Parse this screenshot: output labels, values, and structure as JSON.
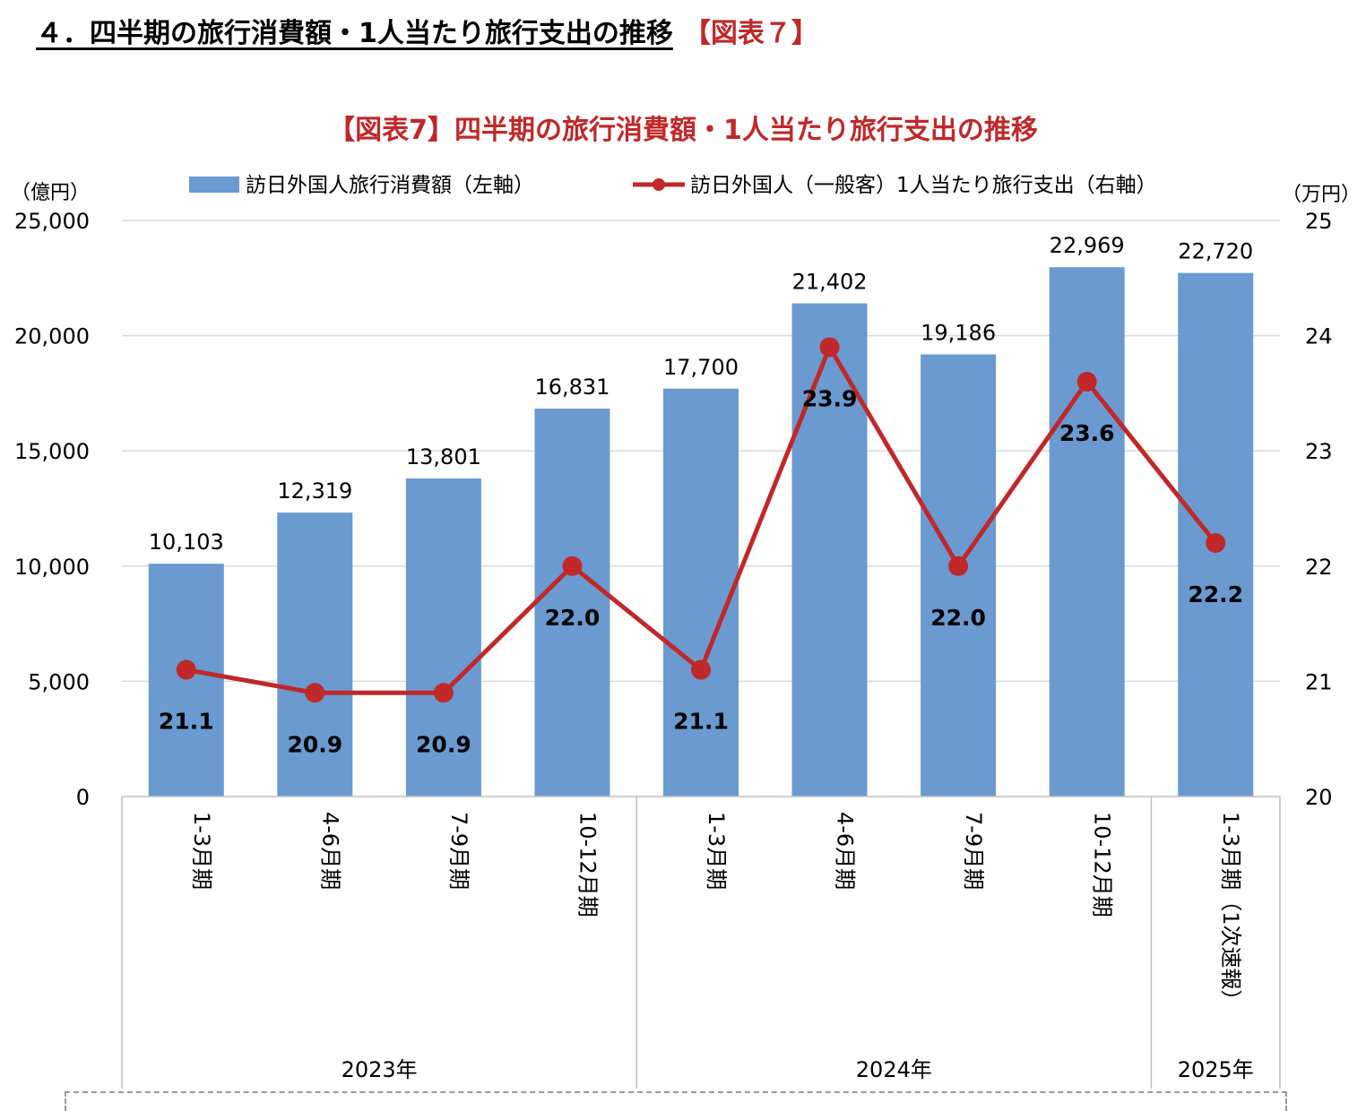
{
  "heading": {
    "main": "４．四半期の旅行消費額・1人当たり旅行支出の推移",
    "tag": "【図表７】"
  },
  "colors": {
    "bar": "#6a9ad0",
    "line": "#c0282a",
    "title": "#c0282a"
  },
  "chart_data": {
    "type": "bar+line",
    "title": "【図表7】四半期の旅行消費額・1人当たり旅行支出の推移",
    "legend_position": "top",
    "categories": [
      "1-3月期",
      "4-6月期",
      "7-9月期",
      "10-12月期",
      "1-3月期",
      "4-6月期",
      "7-9月期",
      "10-12月期",
      "1-3月期（1次速報）"
    ],
    "groups": [
      {
        "label": "2023年",
        "count": 4
      },
      {
        "label": "2024年",
        "count": 4
      },
      {
        "label": "2025年",
        "count": 1
      }
    ],
    "series": [
      {
        "name": "訪日外国人旅行消費額（左軸）",
        "type": "bar",
        "axis": "left",
        "values": [
          10103,
          12319,
          13801,
          16831,
          17700,
          21402,
          19186,
          22969,
          22720
        ],
        "labels": [
          "10,103",
          "12,319",
          "13,801",
          "16,831",
          "17,700",
          "21,402",
          "19,186",
          "22,969",
          "22,720"
        ]
      },
      {
        "name": "訪日外国人（一般客）1人当たり旅行支出（右軸）",
        "type": "line",
        "axis": "right",
        "values": [
          21.1,
          20.9,
          20.9,
          22.0,
          21.1,
          23.9,
          22.0,
          23.6,
          22.2
        ],
        "labels": [
          "21.1",
          "20.9",
          "20.9",
          "22.0",
          "21.1",
          "23.9",
          "22.0",
          "23.6",
          "22.2"
        ]
      }
    ],
    "y_left": {
      "unit": "（億円）",
      "lim": [
        0,
        25000
      ],
      "ticks": [
        "0",
        "5,000",
        "10,000",
        "15,000",
        "20,000",
        "25,000"
      ]
    },
    "y_right": {
      "unit": "（万円）",
      "lim": [
        20,
        25
      ],
      "ticks": [
        "20",
        "21",
        "22",
        "23",
        "24",
        "25"
      ]
    },
    "grid": true
  }
}
